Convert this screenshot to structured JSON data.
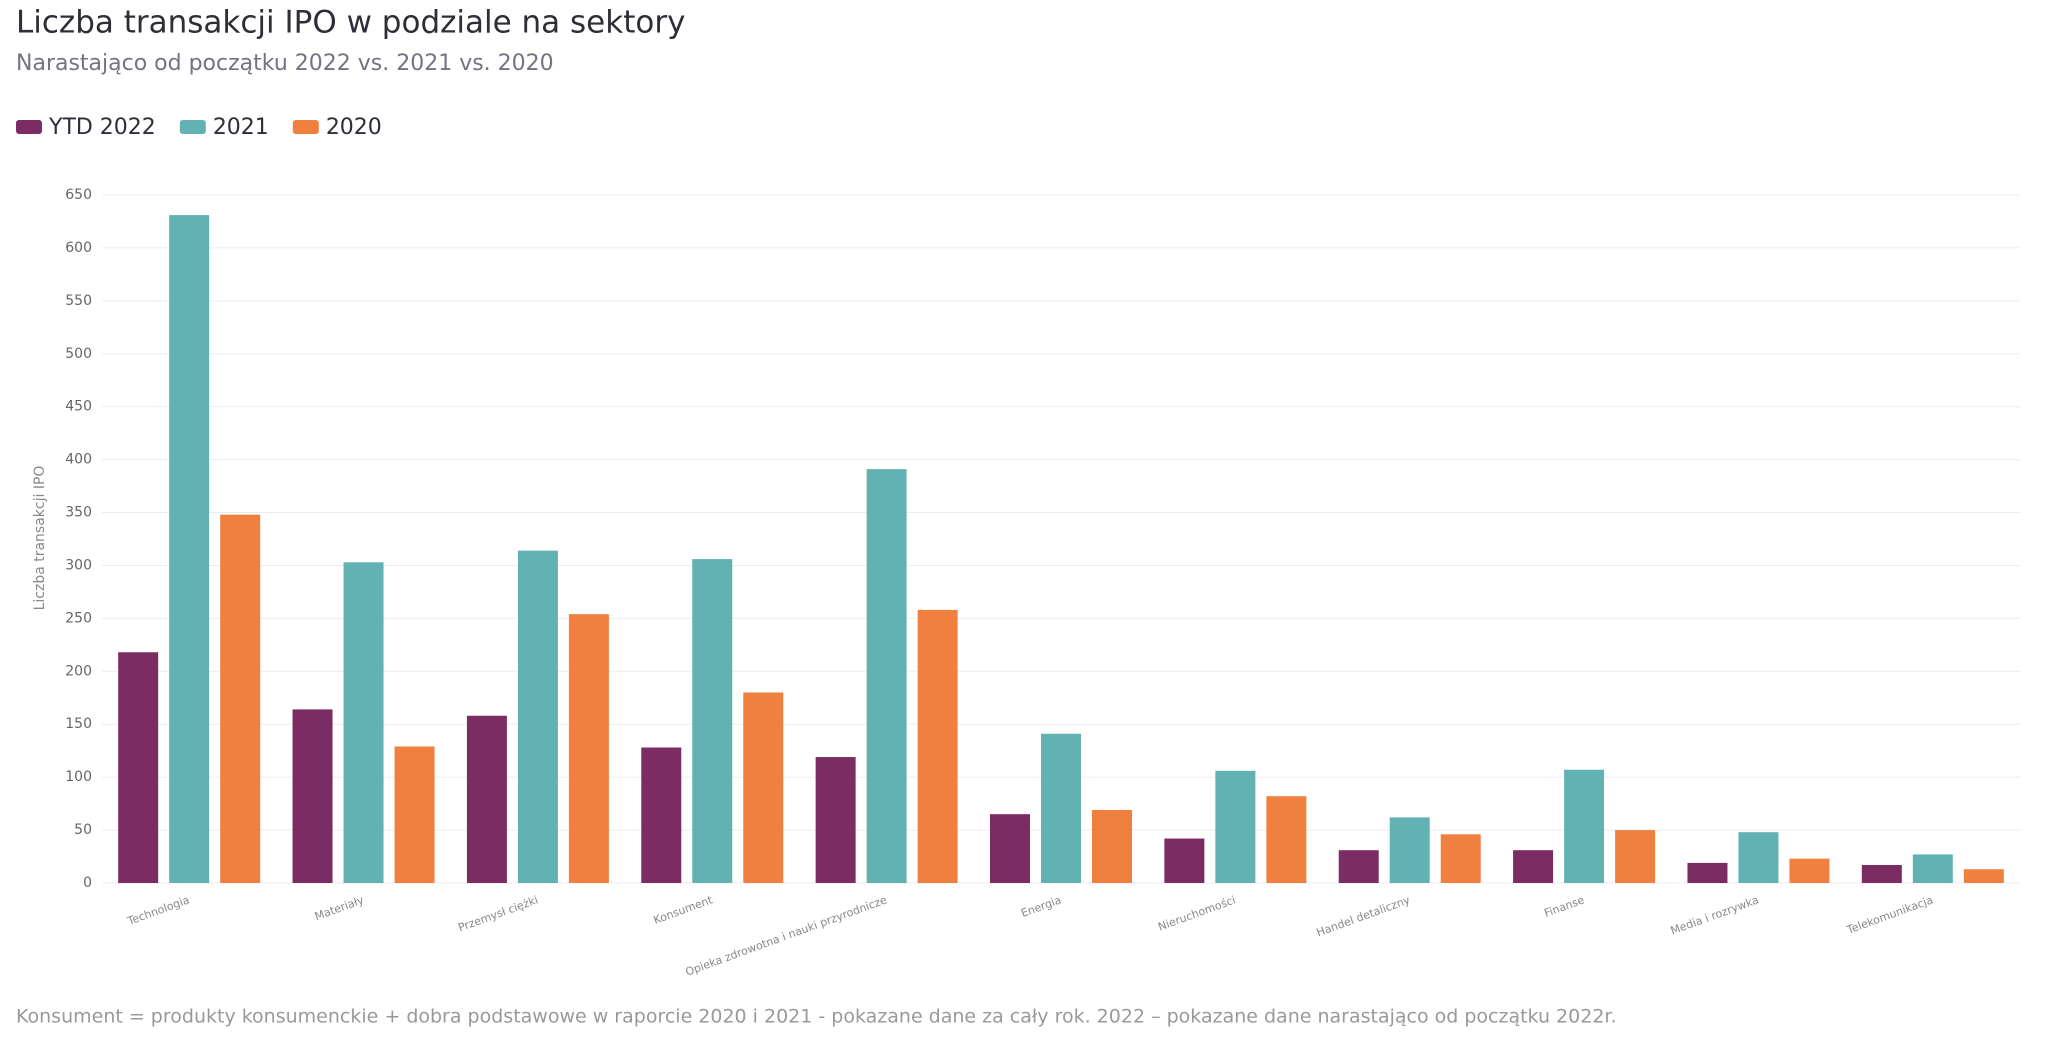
{
  "chart_data": {
    "type": "bar",
    "title": "Liczba transakcji IPO w podziale na sektory",
    "subtitle": "Narastająco od początku 2022 vs. 2021 vs. 2020",
    "y_label": "Liczba transakcji IPO",
    "note": "Konsument = produkty konsumenckie + dobra podstawowe w raporcie 2020 i 2021 - pokazane dane za cały rok. 2022 – pokazane dane narastająco od początku 2022r.",
    "categories": [
      "Technologia",
      "Materiały",
      "Przemysł ciężki",
      "Konsument",
      "Opieka zdrowotna i nauki przyrodnicze",
      "Energia",
      "Nieruchomości",
      "Handel detaliczny",
      "Finanse",
      "Media i rozrywka",
      "Telekomunikacja"
    ],
    "series": [
      {
        "name": "YTD 2022",
        "color": "#7b2d63",
        "values": [
          218,
          164,
          158,
          128,
          119,
          65,
          42,
          31,
          31,
          19,
          17
        ]
      },
      {
        "name": "2021",
        "color": "#63b2b3",
        "values": [
          631,
          303,
          314,
          306,
          391,
          141,
          106,
          62,
          107,
          48,
          27
        ]
      },
      {
        "name": "2020",
        "color": "#f0803f",
        "values": [
          348,
          129,
          254,
          180,
          258,
          69,
          82,
          46,
          50,
          23,
          13
        ]
      }
    ],
    "ylim": [
      0,
      650
    ],
    "yticks": [
      0,
      50,
      100,
      150,
      200,
      250,
      300,
      350,
      400,
      450,
      500,
      550,
      600,
      650
    ],
    "grid": true
  }
}
